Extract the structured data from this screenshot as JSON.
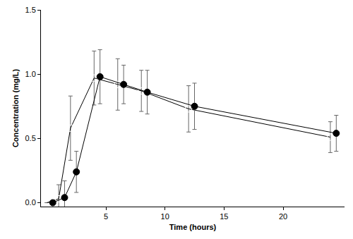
{
  "chart_data": {
    "type": "line",
    "x_label": "Time (hours)",
    "y_label": "Concentration (mg/L)",
    "xlim": [
      -0.5,
      25.2
    ],
    "xticks": [
      5,
      10,
      15,
      20
    ],
    "ylim": [
      -0.03,
      1.5
    ],
    "yticks": [
      {
        "value": 0,
        "label": "0.0"
      },
      {
        "value": 0.5,
        "label": "0.5"
      },
      {
        "value": 1,
        "label": "1.0"
      },
      {
        "value": 1.5,
        "label": "1.5"
      }
    ],
    "grid": false,
    "series": [
      {
        "color": "#000000",
        "marker": "square-open",
        "line_style": "solid",
        "x": [
          0,
          1,
          2,
          4,
          6,
          8,
          12,
          24
        ],
        "values": [
          0,
          0.03,
          0.58,
          0.97,
          0.92,
          0.87,
          0.73,
          0.51
        ],
        "error": [
          0,
          0.11,
          0.25,
          0.21,
          0.2,
          0.16,
          0.18,
          0.12
        ]
      },
      {
        "color": "#000000",
        "marker": "circle",
        "line_style": "solid",
        "x": [
          0.5,
          1.5,
          2.5,
          4.5,
          6.5,
          8.5,
          12.5,
          24.5
        ],
        "values": [
          0,
          0.04,
          0.24,
          0.98,
          0.92,
          0.86,
          0.75,
          0.54
        ],
        "error": [
          0,
          0.13,
          0.16,
          0.21,
          0.15,
          0.17,
          0.18,
          0.14
        ]
      }
    ]
  }
}
